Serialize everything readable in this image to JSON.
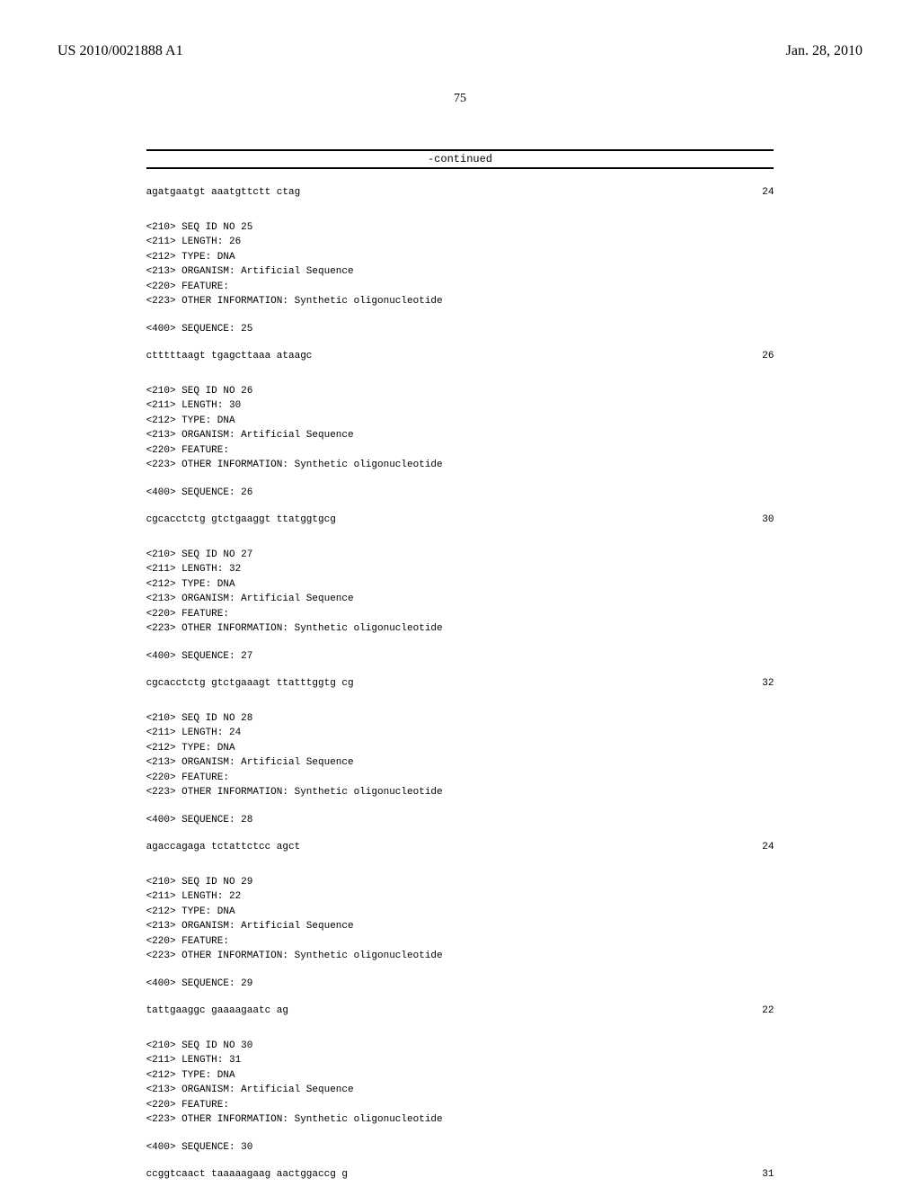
{
  "header": {
    "pubNumber": "US 2010/0021888 A1",
    "pubDate": "Jan. 28, 2010"
  },
  "pageNumber": "75",
  "continuedLabel": "-continued",
  "entries": [
    {
      "type": "seqrow",
      "text": "agatgaatgt aaatgttctt ctag",
      "num": "24"
    },
    {
      "type": "meta",
      "lines": [
        "<210> SEQ ID NO 25",
        "<211> LENGTH: 26",
        "<212> TYPE: DNA",
        "<213> ORGANISM: Artificial Sequence",
        "<220> FEATURE:",
        "<223> OTHER INFORMATION: Synthetic oligonucleotide"
      ]
    },
    {
      "type": "label",
      "text": "<400> SEQUENCE: 25"
    },
    {
      "type": "seqrow",
      "text": "ctttttaagt tgagcttaaa ataagc",
      "num": "26"
    },
    {
      "type": "meta",
      "lines": [
        "<210> SEQ ID NO 26",
        "<211> LENGTH: 30",
        "<212> TYPE: DNA",
        "<213> ORGANISM: Artificial Sequence",
        "<220> FEATURE:",
        "<223> OTHER INFORMATION: Synthetic oligonucleotide"
      ]
    },
    {
      "type": "label",
      "text": "<400> SEQUENCE: 26"
    },
    {
      "type": "seqrow",
      "text": "cgcacctctg gtctgaaggt ttatggtgcg",
      "num": "30"
    },
    {
      "type": "meta",
      "lines": [
        "<210> SEQ ID NO 27",
        "<211> LENGTH: 32",
        "<212> TYPE: DNA",
        "<213> ORGANISM: Artificial Sequence",
        "<220> FEATURE:",
        "<223> OTHER INFORMATION: Synthetic oligonucleotide"
      ]
    },
    {
      "type": "label",
      "text": "<400> SEQUENCE: 27"
    },
    {
      "type": "seqrow",
      "text": "cgcacctctg gtctgaaagt ttatttggtg cg",
      "num": "32"
    },
    {
      "type": "meta",
      "lines": [
        "<210> SEQ ID NO 28",
        "<211> LENGTH: 24",
        "<212> TYPE: DNA",
        "<213> ORGANISM: Artificial Sequence",
        "<220> FEATURE:",
        "<223> OTHER INFORMATION: Synthetic oligonucleotide"
      ]
    },
    {
      "type": "label",
      "text": "<400> SEQUENCE: 28"
    },
    {
      "type": "seqrow",
      "text": "agaccagaga tctattctcc agct",
      "num": "24"
    },
    {
      "type": "meta",
      "lines": [
        "<210> SEQ ID NO 29",
        "<211> LENGTH: 22",
        "<212> TYPE: DNA",
        "<213> ORGANISM: Artificial Sequence",
        "<220> FEATURE:",
        "<223> OTHER INFORMATION: Synthetic oligonucleotide"
      ]
    },
    {
      "type": "label",
      "text": "<400> SEQUENCE: 29"
    },
    {
      "type": "seqrow",
      "text": "tattgaaggc gaaaagaatc ag",
      "num": "22"
    },
    {
      "type": "meta",
      "lines": [
        "<210> SEQ ID NO 30",
        "<211> LENGTH: 31",
        "<212> TYPE: DNA",
        "<213> ORGANISM: Artificial Sequence",
        "<220> FEATURE:",
        "<223> OTHER INFORMATION: Synthetic oligonucleotide"
      ]
    },
    {
      "type": "label",
      "text": "<400> SEQUENCE: 30"
    },
    {
      "type": "seqrow",
      "text": "ccggtcaact taaaaagaag aactggaccg g",
      "num": "31"
    }
  ]
}
